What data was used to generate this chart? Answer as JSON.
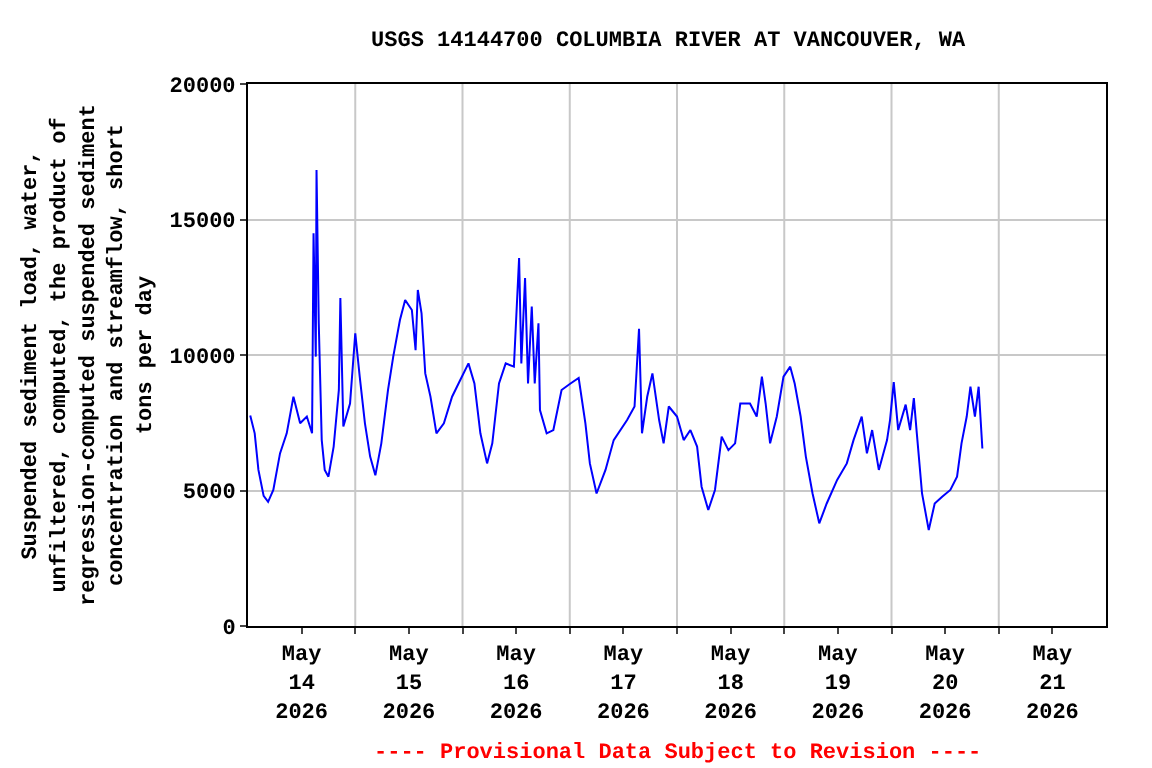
{
  "chart_data": {
    "type": "line",
    "title": "USGS 14144700 COLUMBIA RIVER AT VANCOUVER, WA",
    "ylabel": "Suspended sediment load, water,\nunfiltered, computed, the product of\nregression-computed suspended sediment\nconcentration and streamflow, short\ntons per day",
    "annotations": [
      "---- Provisional Data Subject to Revision ----"
    ],
    "x": [
      "2026-05-14T00:30",
      "2026-05-14T01:30",
      "2026-05-14T02:20",
      "2026-05-14T03:30",
      "2026-05-14T04:30",
      "2026-05-14T05:40",
      "2026-05-14T07:10",
      "2026-05-14T08:40",
      "2026-05-14T10:10",
      "2026-05-14T11:40",
      "2026-05-14T13:10",
      "2026-05-14T14:20",
      "2026-05-14T14:40",
      "2026-05-14T15:10",
      "2026-05-14T15:20",
      "2026-05-14T15:50",
      "2026-05-14T16:30",
      "2026-05-14T17:10",
      "2026-05-14T18:00",
      "2026-05-14T19:10",
      "2026-05-14T20:20",
      "2026-05-14T20:40",
      "2026-05-14T21:20",
      "2026-05-14T22:50",
      "2026-05-15T00:00",
      "2026-05-15T01:00",
      "2026-05-15T02:10",
      "2026-05-15T03:20",
      "2026-05-15T04:30",
      "2026-05-15T05:50",
      "2026-05-15T07:20",
      "2026-05-15T08:30",
      "2026-05-15T10:00",
      "2026-05-15T11:10",
      "2026-05-15T12:40",
      "2026-05-15T13:30",
      "2026-05-15T14:00",
      "2026-05-15T14:50",
      "2026-05-15T15:40",
      "2026-05-15T16:50",
      "2026-05-15T18:10",
      "2026-05-15T19:50",
      "2026-05-15T21:40",
      "2026-05-15T23:30",
      "2026-05-16T01:20",
      "2026-05-16T02:40",
      "2026-05-16T04:00",
      "2026-05-16T05:30",
      "2026-05-16T06:40",
      "2026-05-16T08:10",
      "2026-05-16T09:40",
      "2026-05-16T11:30",
      "2026-05-16T12:40",
      "2026-05-16T13:10",
      "2026-05-16T14:00",
      "2026-05-16T14:40",
      "2026-05-16T15:30",
      "2026-05-16T16:10",
      "2026-05-16T17:00",
      "2026-05-16T17:20",
      "2026-05-16T18:50",
      "2026-05-16T20:20",
      "2026-05-16T22:10",
      "2026-05-17T00:10",
      "2026-05-17T02:00",
      "2026-05-17T03:30",
      "2026-05-17T04:30",
      "2026-05-17T06:00",
      "2026-05-17T08:00",
      "2026-05-17T09:50",
      "2026-05-17T12:50",
      "2026-05-17T14:30",
      "2026-05-17T15:30",
      "2026-05-17T16:10",
      "2026-05-17T17:20",
      "2026-05-17T18:30",
      "2026-05-17T20:00",
      "2026-05-17T21:00",
      "2026-05-17T22:10",
      "2026-05-18T00:00",
      "2026-05-18T01:30",
      "2026-05-18T03:00",
      "2026-05-18T04:30",
      "2026-05-18T05:30",
      "2026-05-18T07:00",
      "2026-05-18T08:30",
      "2026-05-18T10:00",
      "2026-05-18T11:30",
      "2026-05-18T13:00",
      "2026-05-18T14:10",
      "2026-05-18T16:20",
      "2026-05-18T17:50",
      "2026-05-18T19:00",
      "2026-05-18T19:50",
      "2026-05-18T20:50",
      "2026-05-18T22:20",
      "2026-05-18T23:50",
      "2026-05-19T01:20",
      "2026-05-19T02:20",
      "2026-05-19T03:40",
      "2026-05-19T04:50",
      "2026-05-19T06:20",
      "2026-05-19T07:50",
      "2026-05-19T09:30",
      "2026-05-19T11:50",
      "2026-05-19T14:00",
      "2026-05-19T15:30",
      "2026-05-19T17:20",
      "2026-05-19T18:30",
      "2026-05-19T19:40",
      "2026-05-19T21:10",
      "2026-05-19T23:00",
      "2026-05-19T23:40",
      "2026-05-20T00:30",
      "2026-05-20T01:30",
      "2026-05-20T03:10",
      "2026-05-20T04:10",
      "2026-05-20T05:00",
      "2026-05-20T05:40",
      "2026-05-20T06:50",
      "2026-05-20T08:20",
      "2026-05-20T09:40",
      "2026-05-20T11:20",
      "2026-05-20T13:10",
      "2026-05-20T14:40",
      "2026-05-20T15:40",
      "2026-05-20T16:50",
      "2026-05-20T17:40",
      "2026-05-20T18:40",
      "2026-05-20T19:30",
      "2026-05-20T20:20"
    ],
    "series": [
      {
        "color": "#0000ff",
        "values": [
          7770,
          7110,
          5760,
          4800,
          4580,
          5020,
          6370,
          7110,
          8460,
          7480,
          7730,
          7110,
          14490,
          9940,
          16830,
          11170,
          6860,
          5760,
          5510,
          6620,
          8710,
          12100,
          7360,
          8210,
          10800,
          9200,
          7480,
          6250,
          5560,
          6740,
          8710,
          9940,
          11290,
          12030,
          11660,
          10180,
          12400,
          11540,
          9320,
          8460,
          7110,
          7480,
          8460,
          9080,
          9690,
          8950,
          7110,
          6000,
          6740,
          8950,
          9690,
          9570,
          13580,
          9690,
          12840,
          8950,
          11790,
          8950,
          11170,
          7970,
          7110,
          7230,
          8710,
          8950,
          9150,
          7480,
          6000,
          4890,
          5760,
          6860,
          7600,
          8100,
          10970,
          7110,
          8460,
          9320,
          7600,
          6740,
          8100,
          7730,
          6860,
          7230,
          6620,
          5140,
          4280,
          5020,
          6990,
          6490,
          6740,
          8210,
          8210,
          7730,
          9200,
          8210,
          6740,
          7730,
          9200,
          9570,
          8950,
          7730,
          6250,
          4890,
          3790,
          4520,
          5390,
          6000,
          6860,
          7730,
          6370,
          7230,
          5760,
          6860,
          7600,
          9000,
          7230,
          8170,
          7230,
          8410,
          7110,
          4890,
          3540,
          4520,
          4770,
          5020,
          5510,
          6740,
          7730,
          8830,
          7730,
          8830,
          6550
        ]
      }
    ],
    "xlim": [
      "2026-05-14",
      "2026-05-22"
    ],
    "xticks": [
      {
        "value": "2026-05-14T12:00",
        "label": "May\n14\n2026"
      },
      {
        "value": "2026-05-15",
        "label": null
      },
      {
        "value": "2026-05-15T12:00",
        "label": "May\n15\n2026"
      },
      {
        "value": "2026-05-16",
        "label": null
      },
      {
        "value": "2026-05-16T12:00",
        "label": "May\n16\n2026"
      },
      {
        "value": "2026-05-17",
        "label": null
      },
      {
        "value": "2026-05-17T12:00",
        "label": "May\n17\n2026"
      },
      {
        "value": "2026-05-18",
        "label": null
      },
      {
        "value": "2026-05-18T12:00",
        "label": "May\n18\n2026"
      },
      {
        "value": "2026-05-19",
        "label": null
      },
      {
        "value": "2026-05-19T12:00",
        "label": "May\n19\n2026"
      },
      {
        "value": "2026-05-20",
        "label": null
      },
      {
        "value": "2026-05-20T12:00",
        "label": "May\n20\n2026"
      },
      {
        "value": "2026-05-21",
        "label": null
      },
      {
        "value": "2026-05-21T12:00",
        "label": "May\n21\n2026"
      }
    ],
    "ylim": [
      0,
      20000
    ],
    "yticks": [
      0,
      5000,
      10000,
      15000,
      20000
    ],
    "grid": true,
    "line_style": "solid",
    "marker": "none"
  }
}
